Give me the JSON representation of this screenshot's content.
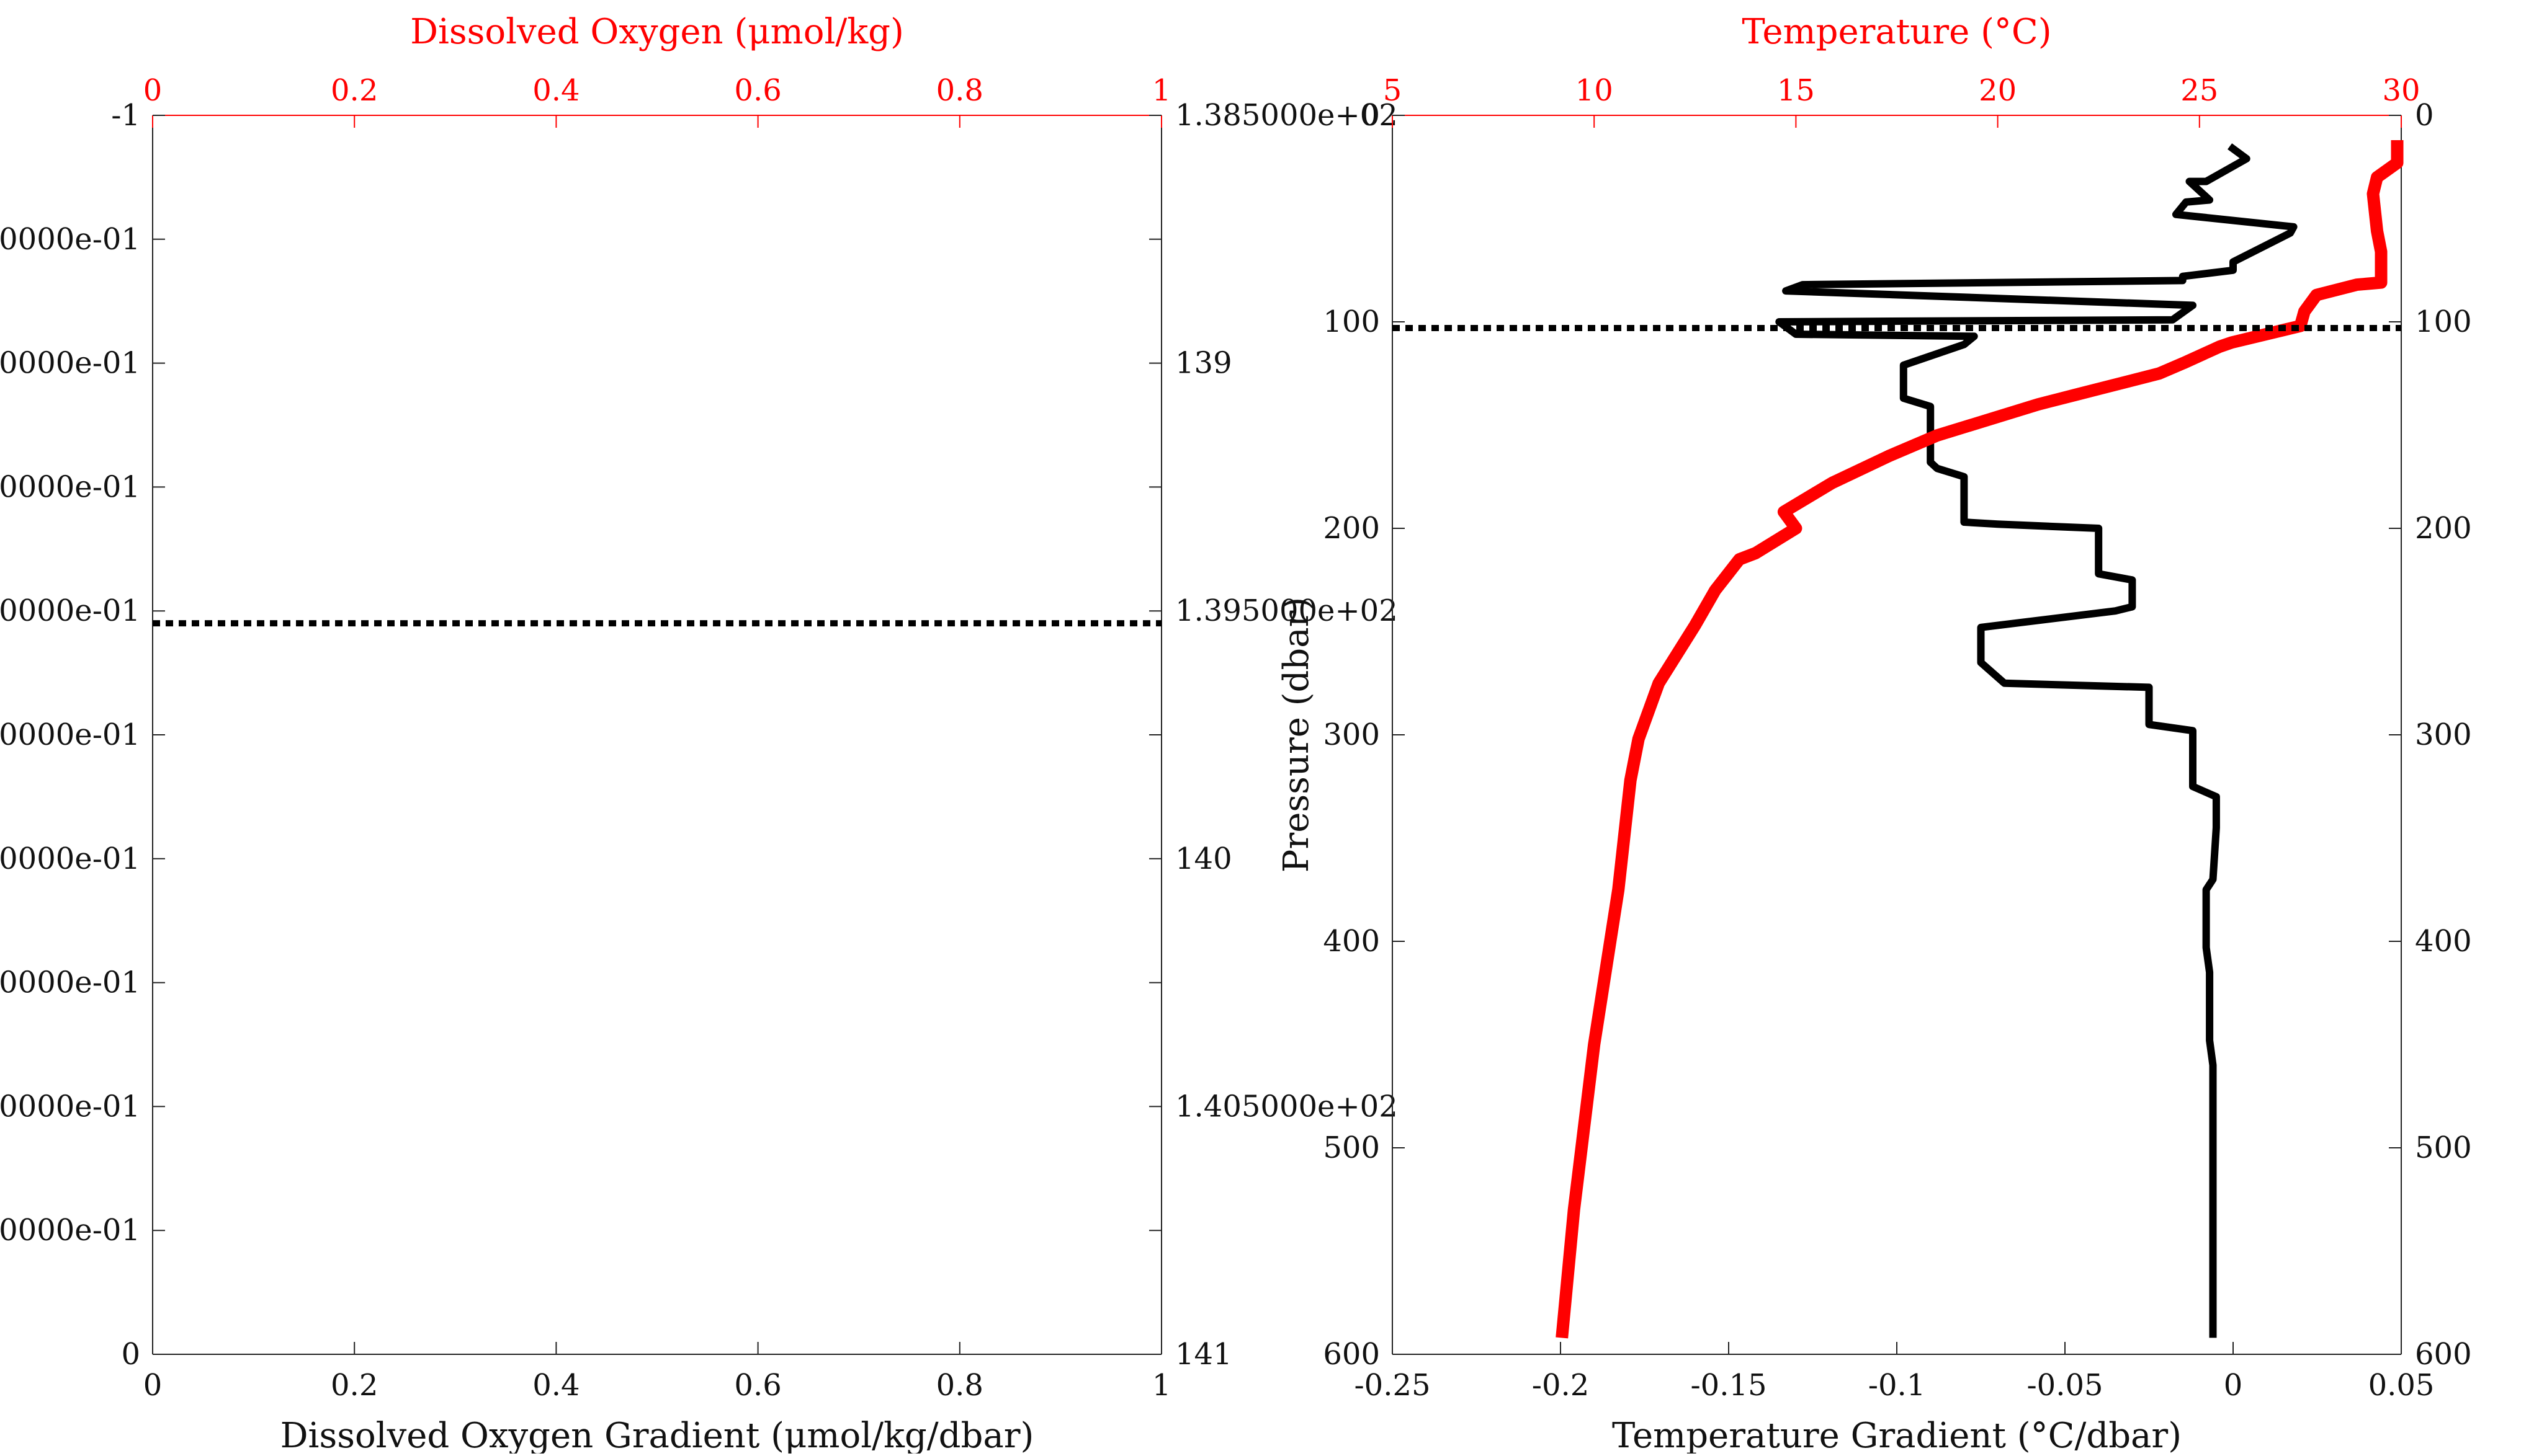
{
  "chart_data": [
    {
      "type": "line",
      "xlabel": "Dissolved Oxygen Gradient (μmol/kg/dbar)",
      "x_top_label": "Dissolved Oxygen (μmol/kg)",
      "xlim": [
        0,
        1
      ],
      "x_top_lim": [
        0,
        1
      ],
      "x_ticks": [
        "0",
        "0.2",
        "0.4",
        "0.6",
        "0.8",
        "1"
      ],
      "x_top_ticks": [
        "0",
        "0.2",
        "0.4",
        "0.6",
        "0.8",
        "1"
      ],
      "y_left_ticks": [
        "-1",
        "0000e-01",
        "0000e-01",
        "0000e-01",
        "0000e-01",
        "0000e-01",
        "0000e-01",
        "0000e-01",
        "0000e-01",
        "0000e-01",
        "0"
      ],
      "y_right_ticks": [
        "1.385000e+02",
        "",
        "139",
        "",
        "1.395000e+02",
        "",
        "140",
        "",
        "1.405000e+02",
        "",
        "141"
      ],
      "y_reversed": true,
      "series": [],
      "reference_line": {
        "style": "dotted",
        "color": "#000000",
        "y_fraction": 0.41
      }
    },
    {
      "type": "line",
      "xlabel": "Temperature Gradient (°C/dbar)",
      "x_top_label": "Temperature (°C)",
      "ylabel": "Pressure (dbar)",
      "xlim": [
        -0.25,
        0.05
      ],
      "x_top_lim": [
        5,
        30
      ],
      "ylim": [
        600,
        0
      ],
      "x_ticks": [
        "-0.25",
        "-0.2",
        "-0.15",
        "-0.1",
        "-0.05",
        "0",
        "0.05"
      ],
      "x_top_ticks": [
        "5",
        "10",
        "15",
        "20",
        "25",
        "30"
      ],
      "y_ticks": [
        "0",
        "100",
        "200",
        "300",
        "400",
        "500",
        "600"
      ],
      "y_reversed": true,
      "reference_line": {
        "style": "dotted",
        "color": "#000000",
        "pressure": 103
      },
      "series": [
        {
          "axis": "bottom",
          "color": "#000000",
          "points": [
            [
              -0.001,
              15
            ],
            [
              0.004,
              21
            ],
            [
              -0.008,
              32
            ],
            [
              -0.013,
              32
            ],
            [
              -0.007,
              41
            ],
            [
              -0.014,
              42
            ],
            [
              -0.017,
              48
            ],
            [
              0.018,
              54
            ],
            [
              0.017,
              57
            ],
            [
              0.0,
              71
            ],
            [
              0.0,
              75
            ],
            [
              -0.015,
              78
            ],
            [
              -0.015,
              80
            ],
            [
              -0.128,
              82
            ],
            [
              -0.133,
              85
            ],
            [
              -0.012,
              92
            ],
            [
              -0.018,
              99
            ],
            [
              -0.135,
              100
            ],
            [
              -0.13,
              106
            ],
            [
              -0.077,
              107
            ],
            [
              -0.08,
              111
            ],
            [
              -0.098,
              121
            ],
            [
              -0.098,
              137
            ],
            [
              -0.09,
              141
            ],
            [
              -0.09,
              168
            ],
            [
              -0.088,
              171
            ],
            [
              -0.08,
              175
            ],
            [
              -0.08,
              197
            ],
            [
              -0.07,
              198
            ],
            [
              -0.04,
              200
            ],
            [
              -0.04,
              222
            ],
            [
              -0.03,
              225
            ],
            [
              -0.03,
              238
            ],
            [
              -0.035,
              240
            ],
            [
              -0.075,
              248
            ],
            [
              -0.075,
              265
            ],
            [
              -0.068,
              275
            ],
            [
              -0.025,
              277
            ],
            [
              -0.025,
              295
            ],
            [
              -0.012,
              298
            ],
            [
              -0.012,
              325
            ],
            [
              -0.005,
              330
            ],
            [
              -0.005,
              345
            ],
            [
              -0.006,
              370
            ],
            [
              -0.008,
              375
            ],
            [
              -0.008,
              403
            ],
            [
              -0.007,
              415
            ],
            [
              -0.007,
              448
            ],
            [
              -0.006,
              460
            ],
            [
              -0.006,
              510
            ],
            [
              -0.006,
              592
            ]
          ]
        },
        {
          "axis": "top",
          "color": "#ff0000",
          "points": [
            [
              29.9,
              12
            ],
            [
              29.9,
              23
            ],
            [
              29.4,
              30
            ],
            [
              29.3,
              38
            ],
            [
              29.4,
              56
            ],
            [
              29.5,
              66
            ],
            [
              29.5,
              81
            ],
            [
              28.9,
              82
            ],
            [
              27.9,
              87
            ],
            [
              27.6,
              95
            ],
            [
              27.5,
              102
            ],
            [
              25.8,
              110
            ],
            [
              25.5,
              112
            ],
            [
              24.6,
              120
            ],
            [
              24.0,
              125
            ],
            [
              22.0,
              135
            ],
            [
              21.0,
              140
            ],
            [
              18.5,
              155
            ],
            [
              17.3,
              165
            ],
            [
              15.9,
              178
            ],
            [
              14.7,
              192
            ],
            [
              15.0,
              200
            ],
            [
              14.0,
              212
            ],
            [
              13.6,
              215
            ],
            [
              13.0,
              230
            ],
            [
              12.5,
              247
            ],
            [
              11.6,
              275
            ],
            [
              11.1,
              302
            ],
            [
              10.9,
              322
            ],
            [
              10.6,
              375
            ],
            [
              10.0,
              450
            ],
            [
              9.5,
              530
            ],
            [
              9.2,
              592
            ]
          ]
        }
      ]
    }
  ]
}
